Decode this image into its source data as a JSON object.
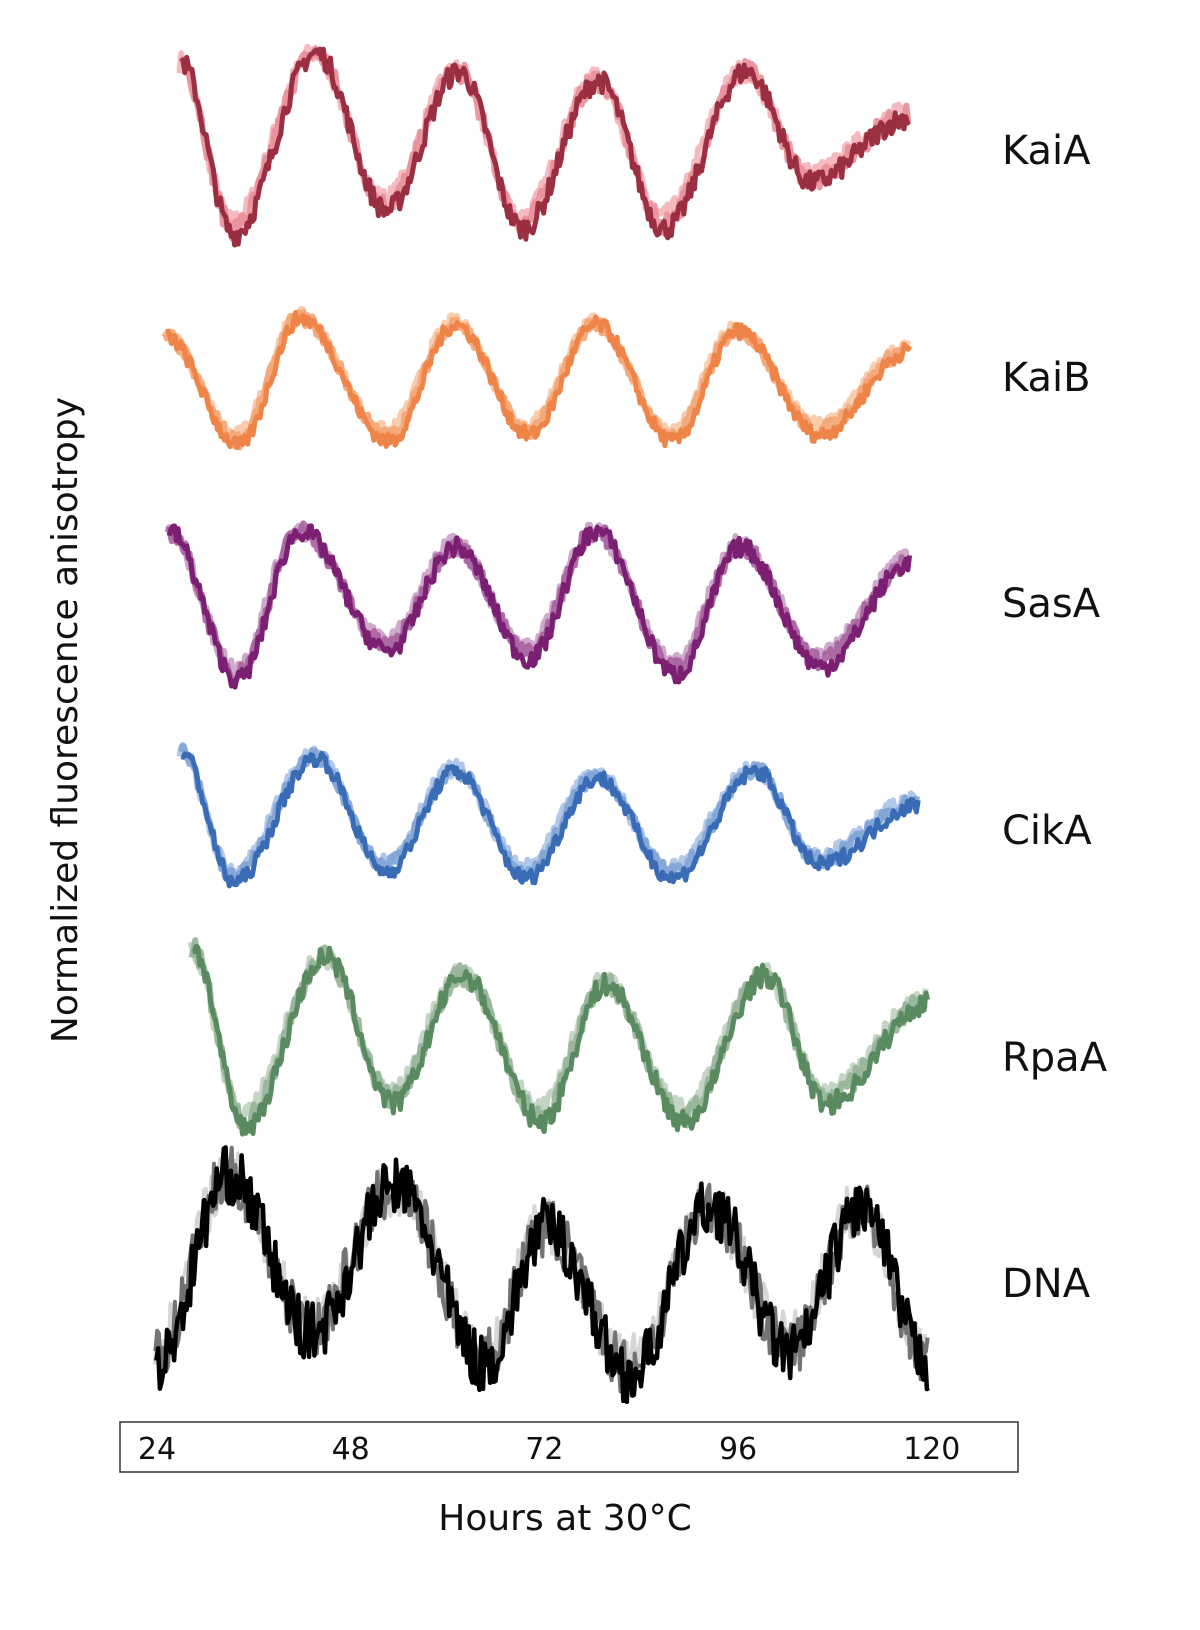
{
  "chart_data": {
    "type": "line",
    "title": "",
    "xlabel": "Hours at 30°C",
    "ylabel": "Normalized fluorescence anisotropy",
    "xlim": [
      24,
      120
    ],
    "x_ticks": [
      "24",
      "48",
      "72",
      "96",
      "120"
    ],
    "x_tick_values": [
      24,
      48,
      72,
      96,
      120
    ],
    "ylim": [
      0,
      1
    ],
    "grid": false,
    "layout_note": "stacked panels, one per protein, 3 replicate traces each",
    "series": [
      {
        "name": "KaiA",
        "colors": [
          "#f4b3b8",
          "#e98f99",
          "#9b2f42"
        ],
        "points": [
          [
            26.9,
            0.95
          ],
          [
            33.4,
            0.02
          ],
          [
            43.6,
            1.0
          ],
          [
            52.3,
            0.15
          ],
          [
            61.3,
            0.9
          ],
          [
            69.2,
            0.05
          ],
          [
            78.6,
            0.85
          ],
          [
            86.7,
            0.05
          ],
          [
            96.9,
            0.9
          ],
          [
            104.9,
            0.3
          ],
          [
            117.1,
            0.65
          ]
        ]
      },
      {
        "name": "KaiB",
        "colors": [
          "#f7c6a4",
          "#f4a474",
          "#ee8447"
        ],
        "points": [
          [
            25.0,
            0.85
          ],
          [
            34.0,
            0.02
          ],
          [
            41.7,
            1.0
          ],
          [
            52.6,
            0.05
          ],
          [
            60.9,
            0.95
          ],
          [
            70.0,
            0.1
          ],
          [
            78.3,
            0.95
          ],
          [
            87.8,
            0.05
          ],
          [
            95.9,
            0.9
          ],
          [
            105.9,
            0.1
          ],
          [
            117.3,
            0.75
          ]
        ]
      },
      {
        "name": "SasA",
        "colors": [
          "#c9a0c6",
          "#a8609f",
          "#7a1f72"
        ],
        "points": [
          [
            25.4,
            0.95
          ],
          [
            33.9,
            0.02
          ],
          [
            41.7,
            0.95
          ],
          [
            52.5,
            0.2
          ],
          [
            60.9,
            0.85
          ],
          [
            70.0,
            0.15
          ],
          [
            78.3,
            0.95
          ],
          [
            88.2,
            0.05
          ],
          [
            96.2,
            0.85
          ],
          [
            106.2,
            0.1
          ],
          [
            117.3,
            0.75
          ]
        ]
      },
      {
        "name": "CikA",
        "colors": [
          "#a9c2e6",
          "#7fa3d6",
          "#3a6cb5"
        ],
        "points": [
          [
            26.9,
            1.0
          ],
          [
            33.4,
            0.02
          ],
          [
            43.6,
            0.95
          ],
          [
            52.3,
            0.1
          ],
          [
            60.9,
            0.85
          ],
          [
            69.6,
            0.05
          ],
          [
            78.5,
            0.8
          ],
          [
            87.8,
            0.05
          ],
          [
            98.1,
            0.85
          ],
          [
            105.9,
            0.15
          ],
          [
            118.3,
            0.6
          ]
        ]
      },
      {
        "name": "RpaA",
        "colors": [
          "#bfd0bf",
          "#95b397",
          "#5a8a60"
        ],
        "points": [
          [
            28.3,
            1.0
          ],
          [
            34.7,
            0.02
          ],
          [
            44.8,
            0.95
          ],
          [
            53.1,
            0.15
          ],
          [
            61.8,
            0.85
          ],
          [
            71.5,
            0.05
          ],
          [
            79.5,
            0.8
          ],
          [
            89.2,
            0.05
          ],
          [
            99.3,
            0.85
          ],
          [
            106.8,
            0.15
          ],
          [
            119.5,
            0.7
          ]
        ]
      },
      {
        "name": "DNA",
        "colors": [
          "#d2d2d2",
          "#666666",
          "#000000"
        ],
        "points": [
          [
            23.8,
            0.1
          ],
          [
            32.8,
            1.0
          ],
          [
            43.0,
            0.25
          ],
          [
            53.5,
            0.95
          ],
          [
            64.6,
            0.1
          ],
          [
            72.1,
            0.75
          ],
          [
            82.6,
            0.05
          ],
          [
            92.5,
            0.85
          ],
          [
            102.4,
            0.15
          ],
          [
            111.1,
            0.85
          ],
          [
            119.5,
            0.1
          ]
        ]
      }
    ]
  }
}
